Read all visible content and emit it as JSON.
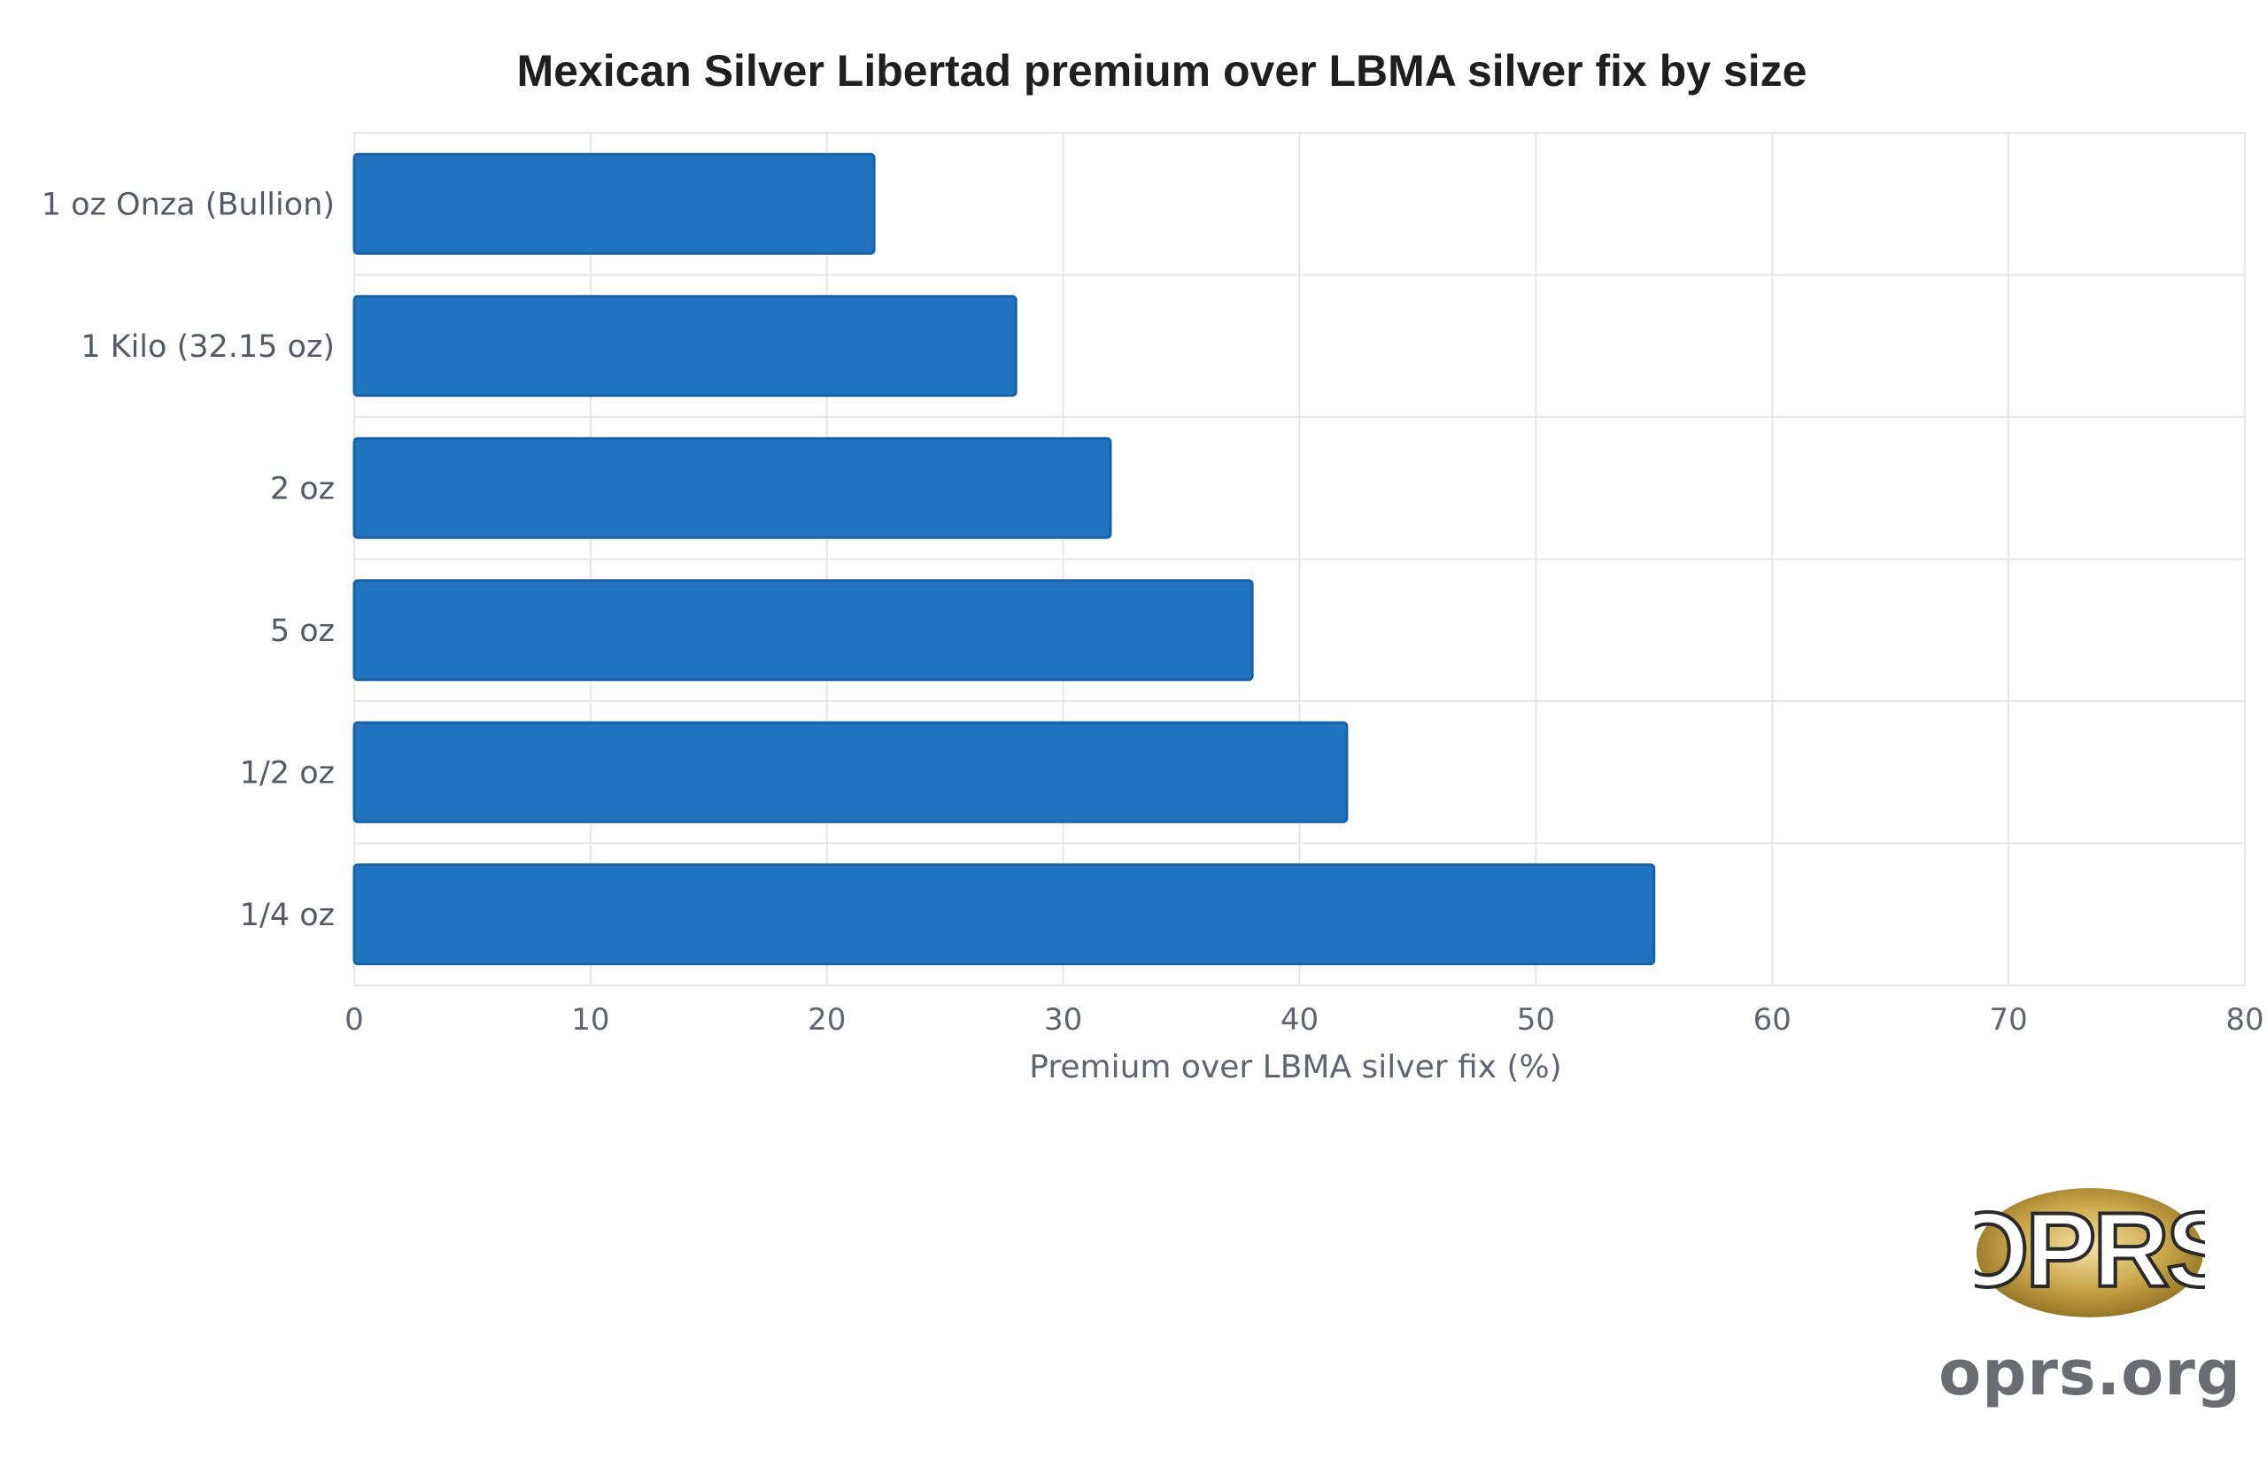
{
  "chart_data": {
    "type": "bar",
    "orientation": "horizontal",
    "title": "Mexican Silver Libertad premium over LBMA silver fix by size",
    "categories": [
      "1 oz Onza (Bullion)",
      "1 Kilo (32.15 oz)",
      "2 oz",
      "5 oz",
      "1/2 oz",
      "1/4 oz"
    ],
    "values": [
      22,
      28,
      32,
      38,
      42,
      55
    ],
    "xlabel": "Premium over LBMA silver fix (%)",
    "ylabel": "",
    "xlim": [
      0,
      80
    ],
    "xticks": [
      "0",
      "10",
      "20",
      "30",
      "40",
      "50",
      "60",
      "70",
      "80"
    ],
    "grid": true,
    "bar_color": "#1f73bf"
  },
  "logo": {
    "badge_text": "OPRS",
    "domain": "oprs.org"
  }
}
